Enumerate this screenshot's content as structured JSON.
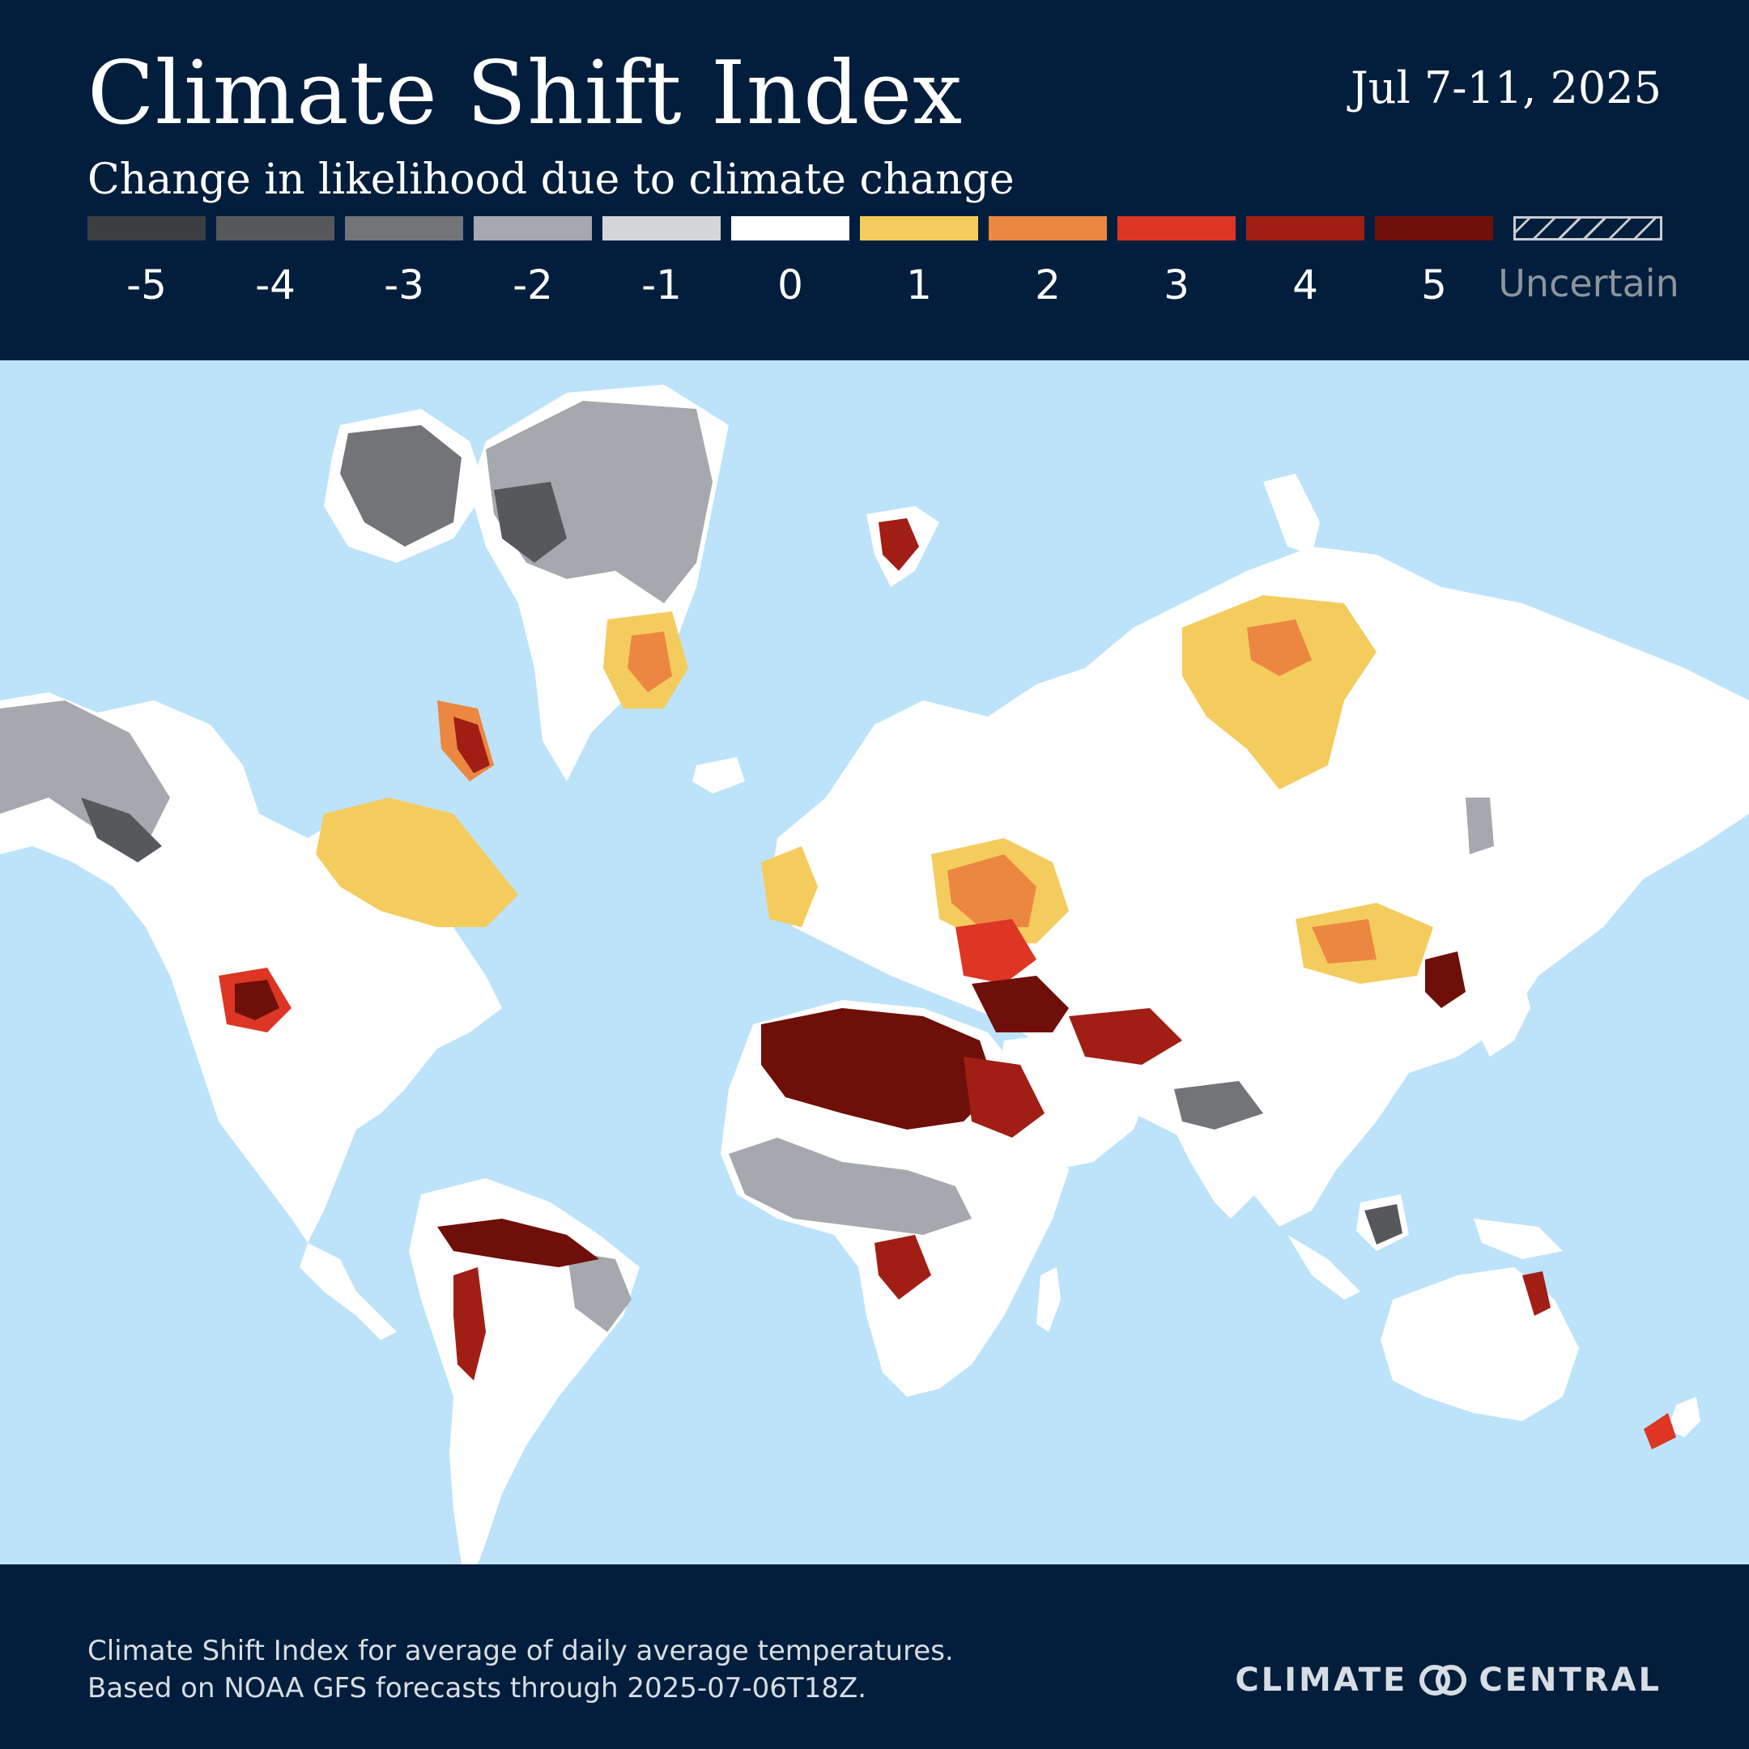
{
  "header": {
    "title": "Climate Shift Index",
    "date": "Jul 7-11, 2025",
    "subtitle": "Change in likelihood due to climate change"
  },
  "legend": {
    "levels": [
      {
        "label": "-5",
        "color": "#3d3e41"
      },
      {
        "label": "-4",
        "color": "#57585b"
      },
      {
        "label": "-3",
        "color": "#727477"
      },
      {
        "label": "-2",
        "color": "#a5a8ac"
      },
      {
        "label": "-1",
        "color": "#d4d5d8"
      },
      {
        "label": "0",
        "color": "#ffffff"
      },
      {
        "label": "1",
        "color": "#f4cc5e"
      },
      {
        "label": "2",
        "color": "#ec8741"
      },
      {
        "label": "3",
        "color": "#dd3624"
      },
      {
        "label": "4",
        "color": "#a11e14"
      },
      {
        "label": "5",
        "color": "#6e0f0a"
      }
    ],
    "uncertain_label": "Uncertain"
  },
  "map": {
    "ocean_color": "#bde3fa",
    "land_color": "#ffffff"
  },
  "footer": {
    "note_line1": "Climate Shift Index for average of daily average temperatures.",
    "note_line2": "Based on NOAA GFS forecasts through 2025-07-06T18Z.",
    "brand_left": "CLIMATE",
    "brand_right": "CENTRAL",
    "brand_icon": "climate-central-logo-icon"
  }
}
